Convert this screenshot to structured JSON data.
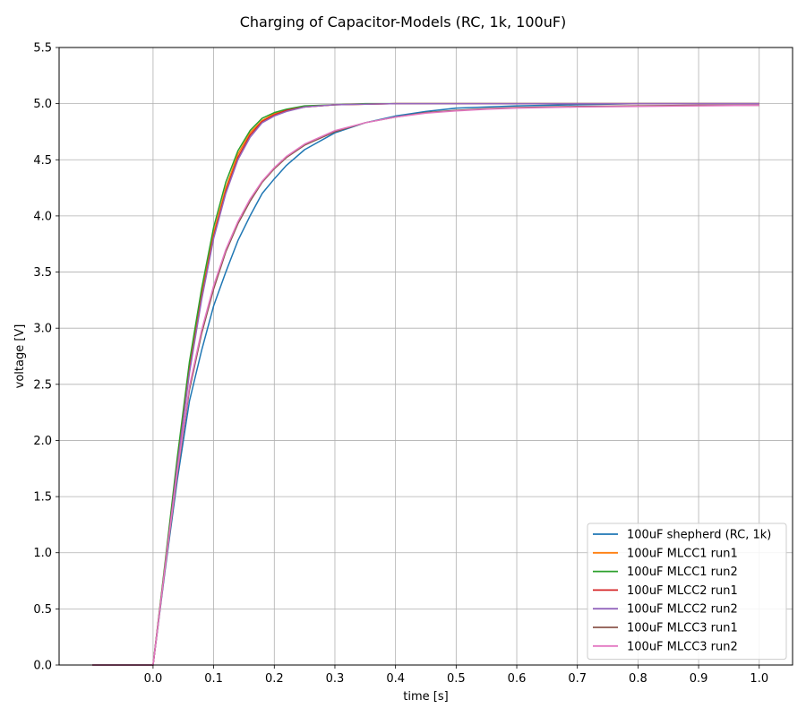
{
  "chart_data": {
    "type": "line",
    "title": "Charging of Capacitor-Models (RC, 1k, 100uF)",
    "xlabel": "time [s]",
    "ylabel": "voltage [V]",
    "xlim": [
      -0.155,
      1.055
    ],
    "ylim": [
      0.0,
      5.5
    ],
    "xticks": [
      0.0,
      0.1,
      0.2,
      0.3,
      0.4,
      0.5,
      0.6,
      0.7,
      0.8,
      0.9,
      1.0
    ],
    "xtick_labels": [
      "0.0",
      "0.1",
      "0.2",
      "0.3",
      "0.4",
      "0.5",
      "0.6",
      "0.7",
      "0.8",
      "0.9",
      "1.0"
    ],
    "yticks": [
      0.0,
      0.5,
      1.0,
      1.5,
      2.0,
      2.5,
      3.0,
      3.5,
      4.0,
      4.5,
      5.0,
      5.5
    ],
    "ytick_labels": [
      "0.0",
      "0.5",
      "1.0",
      "1.5",
      "2.0",
      "2.5",
      "3.0",
      "3.5",
      "4.0",
      "4.5",
      "5.0",
      "5.5"
    ],
    "grid": true,
    "legend_position": "lower-right",
    "series": [
      {
        "name": "100uF shepherd (RC, 1k)",
        "color": "#1f77b4",
        "x": [
          -0.1,
          0.0,
          0.02,
          0.04,
          0.06,
          0.08,
          0.1,
          0.12,
          0.14,
          0.16,
          0.18,
          0.2,
          0.22,
          0.25,
          0.3,
          0.35,
          0.4,
          0.45,
          0.5,
          0.55,
          0.6,
          0.7,
          0.8,
          0.9,
          1.0
        ],
        "y": [
          0.0,
          0.0,
          0.85,
          1.65,
          2.35,
          2.8,
          3.2,
          3.5,
          3.78,
          4.0,
          4.2,
          4.33,
          4.45,
          4.59,
          4.74,
          4.83,
          4.89,
          4.93,
          4.96,
          4.97,
          4.98,
          4.99,
          5.0,
          5.0,
          5.0
        ]
      },
      {
        "name": "100uF MLCC1 run1",
        "color": "#ff7f0e",
        "x": [
          -0.1,
          0.0,
          0.02,
          0.04,
          0.06,
          0.08,
          0.1,
          0.12,
          0.14,
          0.16,
          0.18,
          0.2,
          0.22,
          0.25,
          0.3,
          0.35,
          0.4,
          0.5,
          0.6,
          0.7,
          0.8,
          0.9,
          1.0
        ],
        "y": [
          0.0,
          0.0,
          0.9,
          1.8,
          2.65,
          3.3,
          3.85,
          4.25,
          4.55,
          4.74,
          4.85,
          4.91,
          4.94,
          4.97,
          4.99,
          4.995,
          5.0,
          5.0,
          5.0,
          5.0,
          5.0,
          5.0,
          5.0
        ]
      },
      {
        "name": "100uF MLCC1 run2",
        "color": "#2ca02c",
        "x": [
          -0.1,
          0.0,
          0.02,
          0.04,
          0.06,
          0.08,
          0.1,
          0.12,
          0.14,
          0.16,
          0.18,
          0.2,
          0.22,
          0.25,
          0.3,
          0.35,
          0.4,
          0.5,
          0.6,
          0.7,
          0.8,
          0.9,
          1.0
        ],
        "y": [
          0.0,
          0.0,
          0.92,
          1.85,
          2.7,
          3.35,
          3.9,
          4.3,
          4.58,
          4.76,
          4.87,
          4.92,
          4.95,
          4.98,
          4.99,
          5.0,
          5.0,
          5.0,
          5.0,
          5.0,
          5.0,
          5.0,
          5.0
        ]
      },
      {
        "name": "100uF MLCC2 run1",
        "color": "#d62728",
        "x": [
          -0.1,
          0.0,
          0.02,
          0.04,
          0.06,
          0.08,
          0.1,
          0.12,
          0.14,
          0.16,
          0.18,
          0.2,
          0.22,
          0.25,
          0.3,
          0.35,
          0.4,
          0.5,
          0.6,
          0.7,
          0.8,
          0.9,
          1.0
        ],
        "y": [
          0.0,
          0.0,
          0.89,
          1.78,
          2.62,
          3.27,
          3.82,
          4.22,
          4.52,
          4.72,
          4.84,
          4.9,
          4.94,
          4.97,
          4.99,
          4.995,
          5.0,
          5.0,
          5.0,
          5.0,
          5.0,
          5.0,
          5.0
        ]
      },
      {
        "name": "100uF MLCC2 run2",
        "color": "#9467bd",
        "x": [
          -0.1,
          0.0,
          0.02,
          0.04,
          0.06,
          0.08,
          0.1,
          0.12,
          0.14,
          0.16,
          0.18,
          0.2,
          0.22,
          0.25,
          0.3,
          0.35,
          0.4,
          0.5,
          0.6,
          0.7,
          0.8,
          0.9,
          1.0
        ],
        "y": [
          0.0,
          0.0,
          0.88,
          1.77,
          2.6,
          3.25,
          3.8,
          4.2,
          4.5,
          4.7,
          4.83,
          4.89,
          4.93,
          4.97,
          4.99,
          4.995,
          5.0,
          5.0,
          5.0,
          5.0,
          5.0,
          5.0,
          5.0
        ]
      },
      {
        "name": "100uF MLCC3 run1",
        "color": "#8c564b",
        "x": [
          -0.1,
          0.0,
          0.02,
          0.04,
          0.06,
          0.08,
          0.1,
          0.12,
          0.14,
          0.16,
          0.18,
          0.2,
          0.22,
          0.25,
          0.3,
          0.35,
          0.4,
          0.45,
          0.5,
          0.55,
          0.6,
          0.7,
          0.8,
          0.9,
          1.0
        ],
        "y": [
          0.0,
          0.0,
          0.87,
          1.7,
          2.45,
          2.95,
          3.35,
          3.68,
          3.93,
          4.13,
          4.3,
          4.42,
          4.52,
          4.63,
          4.75,
          4.83,
          4.88,
          4.92,
          4.94,
          4.955,
          4.965,
          4.975,
          4.98,
          4.985,
          4.985
        ]
      },
      {
        "name": "100uF MLCC3 run2",
        "color": "#e377c2",
        "x": [
          -0.1,
          0.0,
          0.02,
          0.04,
          0.06,
          0.08,
          0.1,
          0.12,
          0.14,
          0.16,
          0.18,
          0.2,
          0.22,
          0.25,
          0.3,
          0.35,
          0.4,
          0.45,
          0.5,
          0.55,
          0.6,
          0.7,
          0.8,
          0.9,
          1.0
        ],
        "y": [
          0.0,
          0.0,
          0.88,
          1.72,
          2.48,
          2.98,
          3.38,
          3.7,
          3.95,
          4.15,
          4.31,
          4.43,
          4.53,
          4.64,
          4.76,
          4.83,
          4.88,
          4.915,
          4.935,
          4.95,
          4.96,
          4.97,
          4.975,
          4.98,
          4.985
        ]
      }
    ]
  }
}
